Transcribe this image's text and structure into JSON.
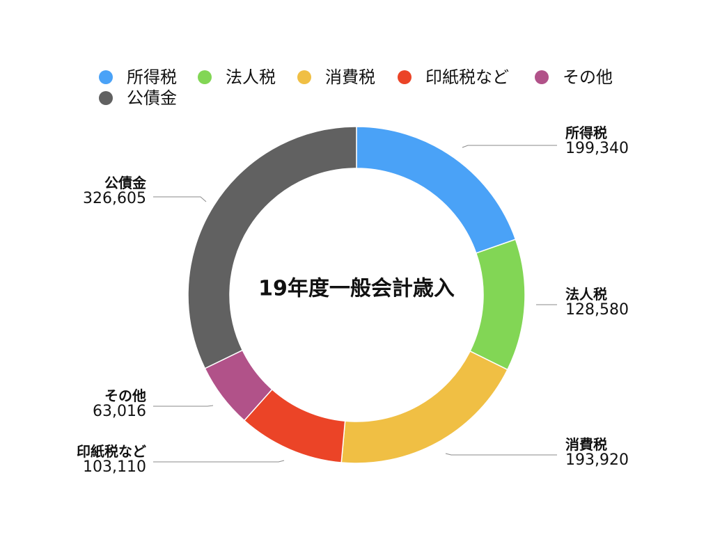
{
  "chart_data": {
    "type": "pie",
    "title": "19年度一般会計歳入",
    "legend_position": "top-left",
    "slices": [
      {
        "label": "所得税",
        "value": 199340,
        "value_label": "199,340",
        "color": "#4aa2f7"
      },
      {
        "label": "法人税",
        "value": 128580,
        "value_label": "128,580",
        "color": "#82d655"
      },
      {
        "label": "消費税",
        "value": 193920,
        "value_label": "193,920",
        "color": "#f0bf44"
      },
      {
        "label": "印紙税など",
        "value": 103110,
        "value_label": "103,110",
        "color": "#eb4427"
      },
      {
        "label": "その他",
        "value": 63016,
        "value_label": "63,016",
        "color": "#b15289"
      },
      {
        "label": "公債金",
        "value": 326605,
        "value_label": "326,605",
        "color": "#616161"
      }
    ]
  }
}
